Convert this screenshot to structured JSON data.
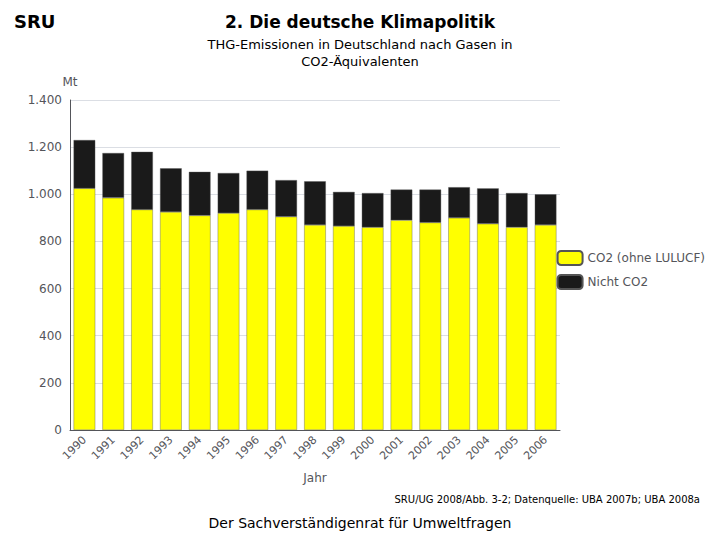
{
  "chart_data": {
    "type": "bar",
    "title": "2. Die deutsche Klimapolitik",
    "subtitle": "THG-Emissionen in Deutschland nach Gasen in\nCO2-Äquivalenten",
    "annotations": [
      "SRU",
      "SRU/UG 2008/Abb. 3-2; Datenquelle: UBA 2007b; UBA 2008a",
      "Der Sachverständigenrat für Umweltfragen"
    ],
    "xlabel": "Jahr",
    "ylabel": "Mt",
    "categories": [
      "1990",
      "1991",
      "1992",
      "1993",
      "1994",
      "1995",
      "1996",
      "1997",
      "1998",
      "1999",
      "2000",
      "2001",
      "2002",
      "2003",
      "2004",
      "2005",
      "2006"
    ],
    "series": [
      {
        "name": "CO2 (ohne LULUCF)",
        "color": "#FFFF00",
        "values": [
          1025,
          985,
          935,
          925,
          910,
          920,
          935,
          905,
          870,
          865,
          860,
          890,
          880,
          900,
          875,
          860,
          870
        ]
      },
      {
        "name": "Nicht CO2",
        "color": "#1A1A1A",
        "values": [
          205,
          190,
          245,
          185,
          185,
          170,
          165,
          155,
          185,
          145,
          145,
          130,
          140,
          130,
          150,
          145,
          130
        ]
      }
    ],
    "stacked": true,
    "ylim": [
      0,
      1400
    ],
    "yticks": [
      0,
      200,
      400,
      600,
      {
        "value": 800,
        "label": "800"
      },
      {
        "value": 1000,
        "label": "1.000"
      },
      {
        "value": 1200,
        "label": "1.200"
      },
      {
        "value": 1400,
        "label": "1.400"
      }
    ],
    "grid": true,
    "legend": "right"
  }
}
